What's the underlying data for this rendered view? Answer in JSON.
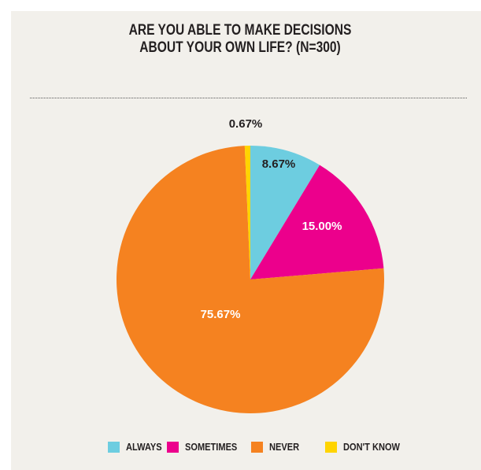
{
  "chart_data": {
    "type": "pie",
    "title_line1": "ARE YOU ABLE TO MAKE DECISIONS",
    "title_line2": "ABOUT YOUR OWN LIFE? (N=300)",
    "categories": [
      "ALWAYS",
      "SOMETIMES",
      "NEVER",
      "DON'T KNOW"
    ],
    "values": [
      8.67,
      15.0,
      75.67,
      0.67
    ],
    "value_labels": [
      "8.67%",
      "15.00%",
      "75.67%",
      "0.67%"
    ],
    "colors": [
      "#6dcde0",
      "#ec008c",
      "#f58220",
      "#ffd400"
    ],
    "label_colors": [
      "#231f20",
      "#ffffff",
      "#ffffff",
      "#231f20"
    ],
    "start_angle_deg": 0,
    "direction": "clockwise",
    "legend_position": "bottom"
  }
}
